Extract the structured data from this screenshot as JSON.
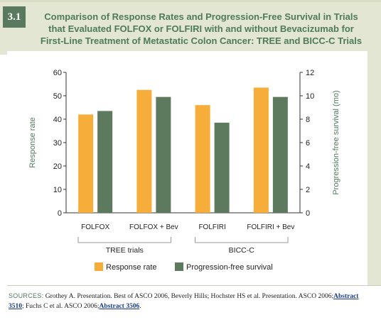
{
  "figure": {
    "number": "3.1",
    "title_lines": [
      "Comparison of Response Rates and Progression-Free Survival in Trials",
      "that Evaluated FOLFOX or FOLFIRI with and without Bevacizumab for",
      "First-Line Treatment of Metastatic Colon Cancer: TREE and BICC-C Trials"
    ]
  },
  "chart_data": {
    "type": "bar",
    "categories": [
      "FOLFOX",
      "FOLFOX + Bev",
      "FOLFIRI",
      "FOLFIRI + Bev"
    ],
    "groups": [
      {
        "label": "TREE trials",
        "categories": [
          "FOLFOX",
          "FOLFOX + Bev"
        ]
      },
      {
        "label": "BICC-C",
        "categories": [
          "FOLFIRI",
          "FOLFIRI + Bev"
        ]
      }
    ],
    "series": [
      {
        "name": "Response rate",
        "axis": "left",
        "color": "#f7ad3a",
        "values": [
          42,
          52.5,
          46,
          53.5
        ]
      },
      {
        "name": "Progression-free survival",
        "axis": "right",
        "color": "#5e7a5e",
        "values": [
          8.7,
          9.9,
          7.7,
          9.9
        ]
      }
    ],
    "ylabel": "Response rate",
    "ylim": [
      0,
      60
    ],
    "yticks": [
      0,
      10,
      20,
      30,
      40,
      50,
      60
    ],
    "y2label": "Progression-free survival (mo)",
    "y2lim": [
      0,
      12
    ],
    "y2ticks": [
      0,
      2,
      4,
      6,
      8,
      10,
      12
    ],
    "grid": false,
    "legend_position": "bottom"
  },
  "sources": {
    "label": "SOURCES:",
    "text_1": "Grothey A. Presentation. Best of ASCO 2006, Beverly Hills; Hochster HS et al. Presentation. ASCO 2006;",
    "link_1": "Abstract 3510",
    "text_2": "; Fuchs C et al. ASCO 2006;",
    "link_2": "Abstract 3506",
    "text_3": "."
  }
}
